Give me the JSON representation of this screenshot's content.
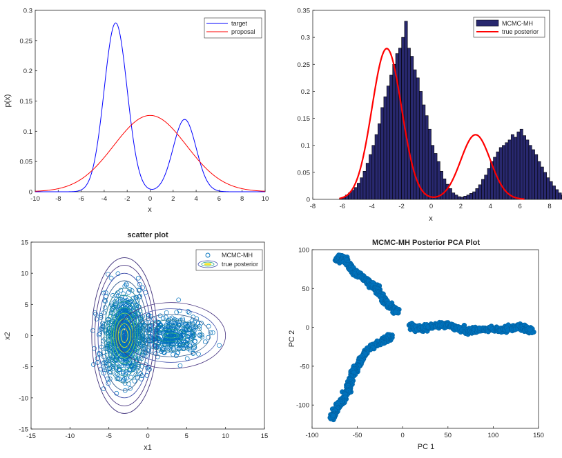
{
  "chart_data": [
    {
      "type": "line",
      "title": "",
      "xlabel": "x",
      "ylabel": "p(x)",
      "xlim": [
        -10,
        10
      ],
      "ylim": [
        0,
        0.3
      ],
      "xticks": [
        -10,
        -8,
        -6,
        -4,
        -2,
        0,
        2,
        4,
        6,
        8,
        10
      ],
      "yticks": [
        0,
        0.05,
        0.1,
        0.15,
        0.2,
        0.25,
        0.3
      ],
      "legend_position": "top-right",
      "series": [
        {
          "name": "target",
          "color": "#0000ff",
          "function": "mixture",
          "components": [
            {
              "weight": 0.7,
              "mean": -3,
              "sd": 1
            },
            {
              "weight": 0.3,
              "mean": 3,
              "sd": 1
            }
          ],
          "peaks": [
            {
              "x": -3,
              "y": 0.279
            },
            {
              "x": 3,
              "y": 0.12
            }
          ]
        },
        {
          "name": "proposal",
          "color": "#ff0000",
          "function": "normal",
          "mean": 0,
          "sd": 3.16,
          "peaks": [
            {
              "x": 0,
              "y": 0.126
            }
          ]
        }
      ]
    },
    {
      "type": "bar",
      "title": "",
      "xlabel": "x",
      "ylabel": "",
      "xlim": [
        -8,
        8
      ],
      "ylim": [
        0,
        0.35
      ],
      "xticks": [
        -8,
        -6,
        -4,
        -2,
        0,
        2,
        4,
        6,
        8
      ],
      "yticks": [
        0,
        0.05,
        0.1,
        0.15,
        0.2,
        0.25,
        0.3,
        0.35
      ],
      "legend_position": "top-right",
      "bin_edges_start": -6.2,
      "bin_width": 0.2,
      "values": [
        0.002,
        0.004,
        0.008,
        0.012,
        0.017,
        0.022,
        0.03,
        0.04,
        0.052,
        0.067,
        0.083,
        0.1,
        0.12,
        0.14,
        0.17,
        0.19,
        0.21,
        0.23,
        0.25,
        0.27,
        0.28,
        0.3,
        0.33,
        0.28,
        0.265,
        0.24,
        0.225,
        0.2,
        0.175,
        0.155,
        0.13,
        0.1,
        0.085,
        0.07,
        0.052,
        0.038,
        0.028,
        0.02,
        0.012,
        0.008,
        0.005,
        0.004,
        0.006,
        0.008,
        0.011,
        0.014,
        0.02,
        0.027,
        0.037,
        0.045,
        0.057,
        0.07,
        0.078,
        0.088,
        0.096,
        0.1,
        0.105,
        0.11,
        0.12,
        0.115,
        0.125,
        0.13,
        0.118,
        0.11,
        0.1,
        0.092,
        0.083,
        0.07,
        0.06,
        0.05,
        0.04,
        0.033,
        0.025,
        0.018,
        0.012,
        0.008,
        0.005,
        0.003
      ],
      "series": [
        {
          "name": "MCMC-MH",
          "color": "#28286e",
          "kind": "histogram"
        },
        {
          "name": "true posterior",
          "color": "#ff0000",
          "kind": "line",
          "x_range": [
            -6.2,
            6.3
          ]
        }
      ]
    },
    {
      "type": "scatter",
      "title": "scatter plot",
      "xlabel": "x1",
      "ylabel": "x2",
      "xlim": [
        -15,
        15
      ],
      "ylim": [
        -15,
        15
      ],
      "xticks": [
        -15,
        -10,
        -5,
        0,
        5,
        10,
        15
      ],
      "yticks": [
        -15,
        -10,
        -5,
        0,
        5,
        10,
        15
      ],
      "legend_position": "top-right",
      "series": [
        {
          "name": "MCMC-MH",
          "color": "#0072bd",
          "marker": "circle",
          "cluster_centers": [
            [
              -3,
              0
            ],
            [
              3,
              0
            ]
          ],
          "cluster_spread": [
            [
              1.3,
              3.3
            ],
            [
              2.0,
              1.5
            ]
          ],
          "x_extent": [
            -7.5,
            9.5
          ],
          "y_extent": [
            -9.5,
            11.5
          ]
        },
        {
          "name": "true posterior",
          "kind": "contour",
          "centers": [
            [
              -3,
              0
            ],
            [
              3,
              0
            ]
          ]
        }
      ]
    },
    {
      "type": "scatter",
      "title": "MCMC-MH Posterior PCA Plot",
      "xlabel": "PC 1",
      "ylabel": "PC 2",
      "xlim": [
        -100,
        150
      ],
      "ylim": [
        -130,
        100
      ],
      "xticks": [
        -100,
        -50,
        0,
        50,
        100,
        150
      ],
      "yticks": [
        -100,
        -50,
        0,
        50,
        100
      ],
      "series": [
        {
          "name": "",
          "color": "#0072bd",
          "marker": "circle-filled",
          "path_segments": [
            [
              [
                -72,
                86
              ],
              [
                -68,
                90
              ],
              [
                -62,
                86
              ],
              [
                -58,
                78
              ],
              [
                -55,
                72
              ],
              [
                -48,
                68
              ],
              [
                -40,
                60
              ],
              [
                -34,
                55
              ],
              [
                -28,
                50
              ],
              [
                -24,
                40
              ],
              [
                -16,
                30
              ],
              [
                -10,
                24
              ],
              [
                -6,
                20
              ]
            ],
            [
              [
                8,
                2
              ],
              [
                18,
                -2
              ],
              [
                30,
                1
              ],
              [
                45,
                4
              ],
              [
                58,
                0
              ],
              [
                70,
                -4
              ],
              [
                80,
                -5
              ],
              [
                95,
                -2
              ],
              [
                108,
                -3
              ],
              [
                120,
                -1
              ],
              [
                130,
                1
              ],
              [
                138,
                -3
              ],
              [
                142,
                -5
              ]
            ],
            [
              [
                -14,
                -12
              ],
              [
                -18,
                -15
              ],
              [
                -25,
                -20
              ],
              [
                -38,
                -28
              ],
              [
                -45,
                -40
              ],
              [
                -50,
                -50
              ],
              [
                -55,
                -58
              ],
              [
                -58,
                -70
              ],
              [
                -60,
                -80
              ],
              [
                -66,
                -95
              ],
              [
                -72,
                -103
              ],
              [
                -76,
                -112
              ],
              [
                -78,
                -117
              ]
            ]
          ]
        }
      ]
    }
  ]
}
